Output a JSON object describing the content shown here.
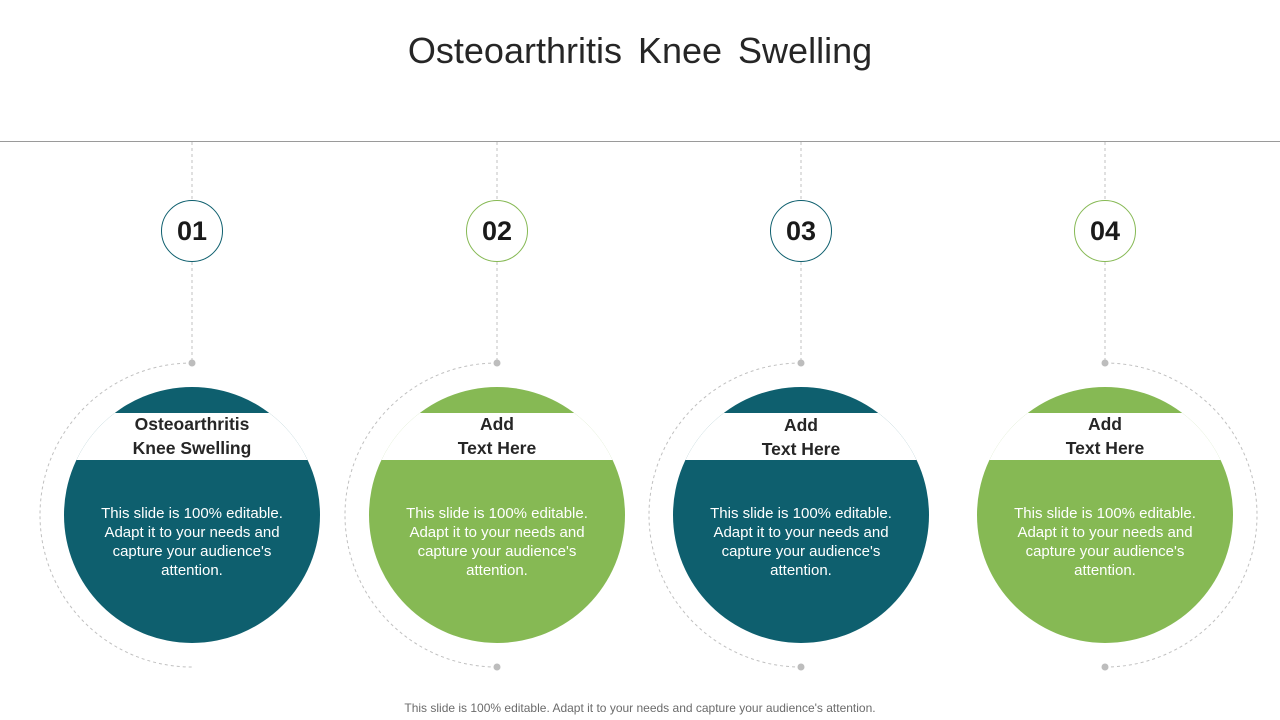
{
  "title": "Osteoarthritis  Knee Swelling",
  "footer": "This slide is 100% editable. Adapt it to your needs and capture your audience's attention.",
  "colors": {
    "teal": "#0e5f6e",
    "green": "#86b954",
    "text": "#262626",
    "dashed": "#c0c0c0"
  },
  "steps": [
    {
      "number": "01",
      "color": "teal",
      "title_line1": "Osteoarthritis",
      "title_line2": "Knee Swelling",
      "text": "This slide is 100% editable. Adapt it to your needs and capture your audience's attention."
    },
    {
      "number": "02",
      "color": "green",
      "title_line1": "Add",
      "title_line2": "Text Here",
      "text": "This slide is 100% editable. Adapt it to your needs and capture your audience's attention."
    },
    {
      "number": "03",
      "color": "teal",
      "title_line1": "Add",
      "title_line2": "Text Here",
      "text": "This slide is 100% editable. Adapt it to your needs and capture your audience's attention."
    },
    {
      "number": "04",
      "color": "green",
      "title_line1": "Add",
      "title_line2": "Text Here",
      "text": "This slide is 100% editable. Adapt it to your needs and capture your audience's attention."
    }
  ]
}
